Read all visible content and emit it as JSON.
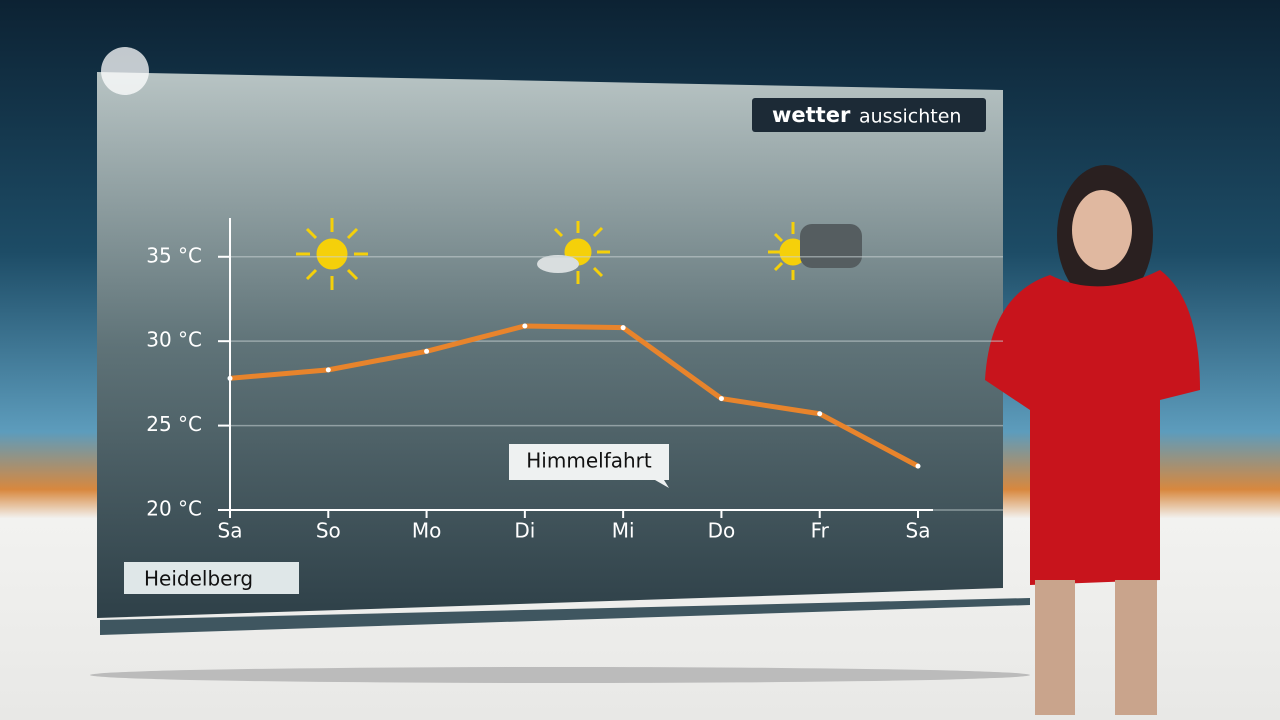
{
  "brand": {
    "strong": "wetter",
    "light": "aussichten"
  },
  "location": "Heidelberg",
  "chart_data": {
    "type": "line",
    "categories": [
      "Sa",
      "So",
      "Mo",
      "Di",
      "Mi",
      "Do",
      "Fr",
      "Sa"
    ],
    "series": [
      {
        "color": "#e8842c",
        "values": [
          27.8,
          28.3,
          29.4,
          30.9,
          30.8,
          26.6,
          25.7,
          22.6
        ]
      }
    ],
    "ylim": [
      20,
      37
    ],
    "yticks": [
      {
        "value": 20,
        "label": "20 °C"
      },
      {
        "value": 25,
        "label": "25 °C"
      },
      {
        "value": 30,
        "label": "30 °C"
      },
      {
        "value": 35,
        "label": "35 °C"
      }
    ],
    "grid": true,
    "annotations": [
      {
        "text": "Himmelfahrt"
      }
    ]
  }
}
